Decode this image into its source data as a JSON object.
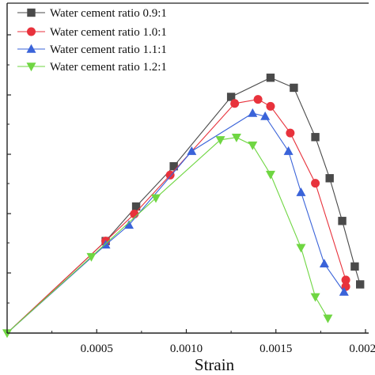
{
  "chart_data": {
    "type": "line",
    "xlabel": "Strain",
    "ylabel": "",
    "xlim": [
      0,
      0.00197
    ],
    "x_ticks": [
      "0.0005",
      "0.0010",
      "0.0015",
      "0.0020"
    ],
    "grid": false,
    "legend_position": "top-left",
    "series": [
      {
        "name": "Water cement ratio 0.9:1",
        "marker": "square",
        "color": "#4a4a4a",
        "points": [
          {
            "x": 0.0,
            "y": 0.0
          },
          {
            "x": 0.00055,
            "y": 0.293
          },
          {
            "x": 0.00072,
            "y": 0.403
          },
          {
            "x": 0.00093,
            "y": 0.531
          },
          {
            "x": 0.00125,
            "y": 0.752
          },
          {
            "x": 0.00147,
            "y": 0.813
          },
          {
            "x": 0.0016,
            "y": 0.781
          },
          {
            "x": 0.00172,
            "y": 0.624
          },
          {
            "x": 0.0018,
            "y": 0.493
          },
          {
            "x": 0.00187,
            "y": 0.357
          },
          {
            "x": 0.00194,
            "y": 0.212
          },
          {
            "x": 0.00197,
            "y": 0.155
          }
        ]
      },
      {
        "name": "Water cement ratio 1.0:1",
        "marker": "circle",
        "color": "#e8323c",
        "points": [
          {
            "x": 0.0,
            "y": 0.0
          },
          {
            "x": 0.00055,
            "y": 0.293
          },
          {
            "x": 0.00071,
            "y": 0.379
          },
          {
            "x": 0.00091,
            "y": 0.503
          },
          {
            "x": 0.00127,
            "y": 0.731
          },
          {
            "x": 0.0014,
            "y": 0.744
          },
          {
            "x": 0.00147,
            "y": 0.722
          },
          {
            "x": 0.00158,
            "y": 0.637
          },
          {
            "x": 0.00172,
            "y": 0.477
          },
          {
            "x": 0.00189,
            "y": 0.169
          },
          {
            "x": 0.00189,
            "y": 0.148
          }
        ]
      },
      {
        "name": "Water cement ratio 1.1:1",
        "marker": "triangle-up",
        "color": "#3a63d9",
        "points": [
          {
            "x": 0.0,
            "y": 0.0
          },
          {
            "x": 0.00055,
            "y": 0.281
          },
          {
            "x": 0.00068,
            "y": 0.344
          },
          {
            "x": 0.00103,
            "y": 0.579
          },
          {
            "x": 0.00137,
            "y": 0.7
          },
          {
            "x": 0.00144,
            "y": 0.69
          },
          {
            "x": 0.00157,
            "y": 0.579
          },
          {
            "x": 0.00164,
            "y": 0.448
          },
          {
            "x": 0.00177,
            "y": 0.221
          },
          {
            "x": 0.00188,
            "y": 0.131
          }
        ]
      },
      {
        "name": "Water cement ratio 1.2:1",
        "marker": "triangle-down",
        "color": "#6fd642",
        "points": [
          {
            "x": 0.0,
            "y": 0.0
          },
          {
            "x": 0.00047,
            "y": 0.243
          },
          {
            "x": 0.00083,
            "y": 0.43
          },
          {
            "x": 0.00119,
            "y": 0.615
          },
          {
            "x": 0.00128,
            "y": 0.623
          },
          {
            "x": 0.00137,
            "y": 0.598
          },
          {
            "x": 0.00147,
            "y": 0.505
          },
          {
            "x": 0.00164,
            "y": 0.272
          },
          {
            "x": 0.00172,
            "y": 0.115
          },
          {
            "x": 0.00179,
            "y": 0.047
          }
        ]
      }
    ]
  }
}
